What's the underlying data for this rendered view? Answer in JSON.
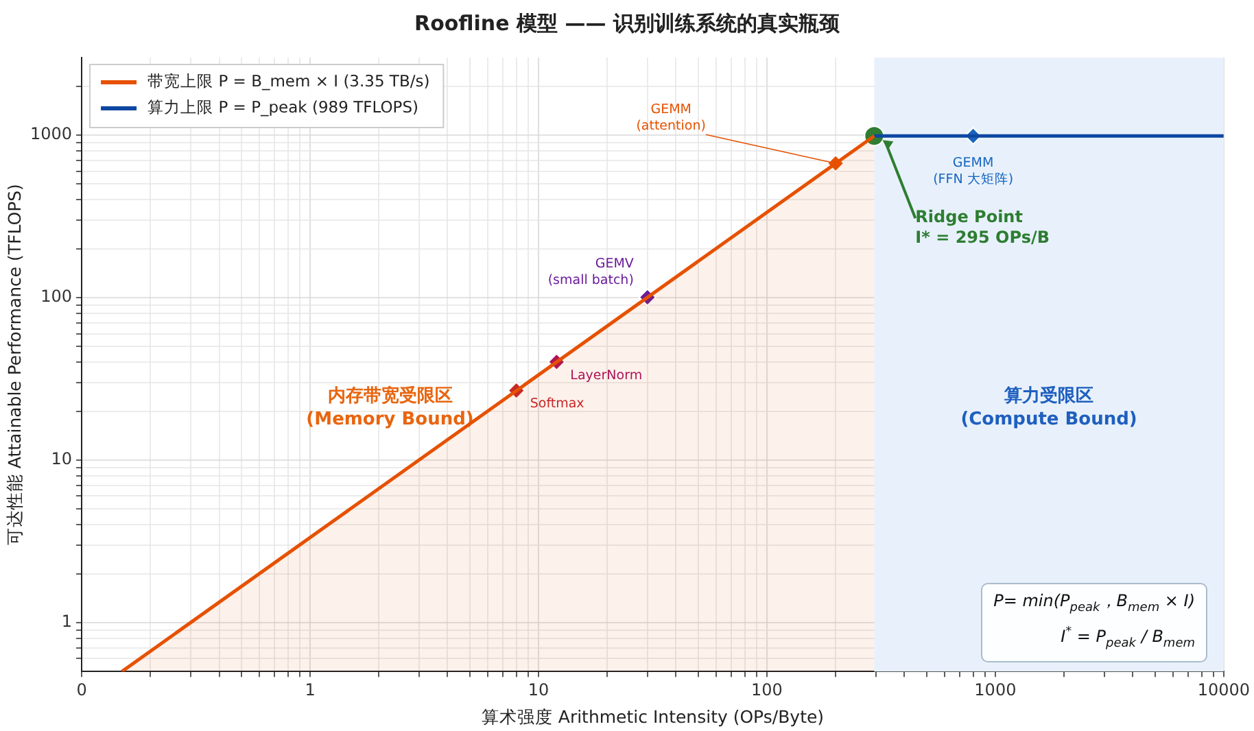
{
  "chart_data": {
    "type": "line",
    "title": "Roofline 模型 —— 识别训练系统的真实瓶颈",
    "xlabel": "算术强度 Arithmetic Intensity (OPs/Byte)",
    "ylabel": "可达性能 Attainable Performance (TFLOPS)",
    "log": "xy",
    "grid": true,
    "legend": "top left",
    "xlim": [
      0.1,
      10000
    ],
    "ylim": [
      0.5,
      3000
    ],
    "xticks": [
      {
        "value": 0.1,
        "label": "0"
      },
      {
        "value": 0.2,
        "label": null
      },
      {
        "value": 0.3,
        "label": null
      },
      {
        "value": 0.4,
        "label": null
      },
      {
        "value": 0.5,
        "label": null
      },
      {
        "value": 0.6,
        "label": null
      },
      {
        "value": 0.7,
        "label": null
      },
      {
        "value": 0.8,
        "label": null
      },
      {
        "value": 0.9,
        "label": null
      },
      1,
      {
        "value": 2,
        "label": null
      },
      {
        "value": 3,
        "label": null
      },
      {
        "value": 4,
        "label": null
      },
      {
        "value": 5,
        "label": null
      },
      {
        "value": 6,
        "label": null
      },
      {
        "value": 7,
        "label": null
      },
      {
        "value": 8,
        "label": null
      },
      {
        "value": 9,
        "label": null
      },
      10,
      {
        "value": 20,
        "label": null
      },
      {
        "value": 30,
        "label": null
      },
      {
        "value": 40,
        "label": null
      },
      {
        "value": 50,
        "label": null
      },
      {
        "value": 60,
        "label": null
      },
      {
        "value": 70,
        "label": null
      },
      {
        "value": 80,
        "label": null
      },
      {
        "value": 90,
        "label": null
      },
      100,
      {
        "value": 200,
        "label": null
      },
      {
        "value": 300,
        "label": null
      },
      {
        "value": 400,
        "label": null
      },
      {
        "value": 500,
        "label": null
      },
      {
        "value": 600,
        "label": null
      },
      {
        "value": 700,
        "label": null
      },
      {
        "value": 800,
        "label": null
      },
      {
        "value": 900,
        "label": null
      },
      1000,
      {
        "value": 2000,
        "label": null
      },
      {
        "value": 3000,
        "label": null
      },
      {
        "value": 4000,
        "label": null
      },
      {
        "value": 5000,
        "label": null
      },
      {
        "value": 6000,
        "label": null
      },
      {
        "value": 7000,
        "label": null
      },
      {
        "value": 8000,
        "label": null
      },
      {
        "value": 9000,
        "label": null
      },
      10000
    ],
    "yticks": [
      {
        "value": 0.6,
        "label": null
      },
      {
        "value": 0.7,
        "label": null
      },
      {
        "value": 0.8,
        "label": null
      },
      {
        "value": 0.9,
        "label": null
      },
      1,
      {
        "value": 2,
        "label": null
      },
      {
        "value": 3,
        "label": null
      },
      {
        "value": 4,
        "label": null
      },
      {
        "value": 5,
        "label": null
      },
      {
        "value": 6,
        "label": null
      },
      {
        "value": 7,
        "label": null
      },
      {
        "value": 8,
        "label": null
      },
      {
        "value": 9,
        "label": null
      },
      10,
      {
        "value": 20,
        "label": null
      },
      {
        "value": 30,
        "label": null
      },
      {
        "value": 40,
        "label": null
      },
      {
        "value": 50,
        "label": null
      },
      {
        "value": 60,
        "label": null
      },
      {
        "value": 70,
        "label": null
      },
      {
        "value": 80,
        "label": null
      },
      {
        "value": 90,
        "label": null
      },
      100,
      {
        "value": 200,
        "label": null
      },
      {
        "value": 300,
        "label": null
      },
      {
        "value": 400,
        "label": null
      },
      {
        "value": 500,
        "label": null
      },
      {
        "value": 600,
        "label": null
      },
      {
        "value": 700,
        "label": null
      },
      {
        "value": 800,
        "label": null
      },
      {
        "value": 900,
        "label": null
      },
      1000,
      {
        "value": 2000,
        "label": null
      }
    ],
    "series": [
      {
        "type": "area",
        "name": "带宽上限 P = B_mem × I (3.35 TB/s)",
        "color": "#e65100",
        "x": [
          0.15,
          295
        ],
        "values": [
          0.5,
          988
        ]
      },
      {
        "name": "算力上限 P = P_peak (989 TFLOPS)",
        "color": "#0d47a1",
        "x": [
          295,
          10000
        ],
        "values": [
          989,
          989
        ]
      },
      {
        "type": "scatter",
        "marker": "diamond",
        "name": "Softmax",
        "color": "#c62828",
        "x": [
          8
        ],
        "values": [
          26.8
        ]
      },
      {
        "type": "scatter",
        "marker": "diamond",
        "name": "LayerNorm",
        "color": "#ad1457",
        "x": [
          12
        ],
        "values": [
          40.2
        ]
      },
      {
        "type": "scatter",
        "marker": "diamond",
        "name": "GEMV\n(small batch)",
        "color": "#6a1b9a",
        "x": [
          30
        ],
        "values": [
          100.5
        ]
      },
      {
        "type": "scatter",
        "marker": "diamond",
        "name": "GEMM\n(attention)",
        "color": "#e65100",
        "x": [
          200
        ],
        "values": [
          670
        ]
      },
      {
        "type": "scatter",
        "marker": "diamond",
        "name": "GEMM\n(FFN 大矩阵)",
        "color": "#1565c0",
        "x": [
          800
        ],
        "values": [
          989
        ]
      },
      {
        "type": "scatter",
        "marker": "circle",
        "name": "Ridge Point\nI* = 295 OPs/B",
        "color": "#2e7d32",
        "x": [
          295
        ],
        "values": [
          989
        ]
      }
    ],
    "bands": [
      {
        "axis": "x",
        "from": 295,
        "to": 10000,
        "label": "算力受限区\n(Compute Bound)",
        "color": "#e8f1fb"
      }
    ],
    "annotations": [
      "内存带宽受限区\n(Memory Bound)",
      "P= min(P$_{peak}$，B$_{mem}$ × I)",
      "I$^{*}$ = P$_{peak}$ / B$_{mem}$"
    ]
  }
}
